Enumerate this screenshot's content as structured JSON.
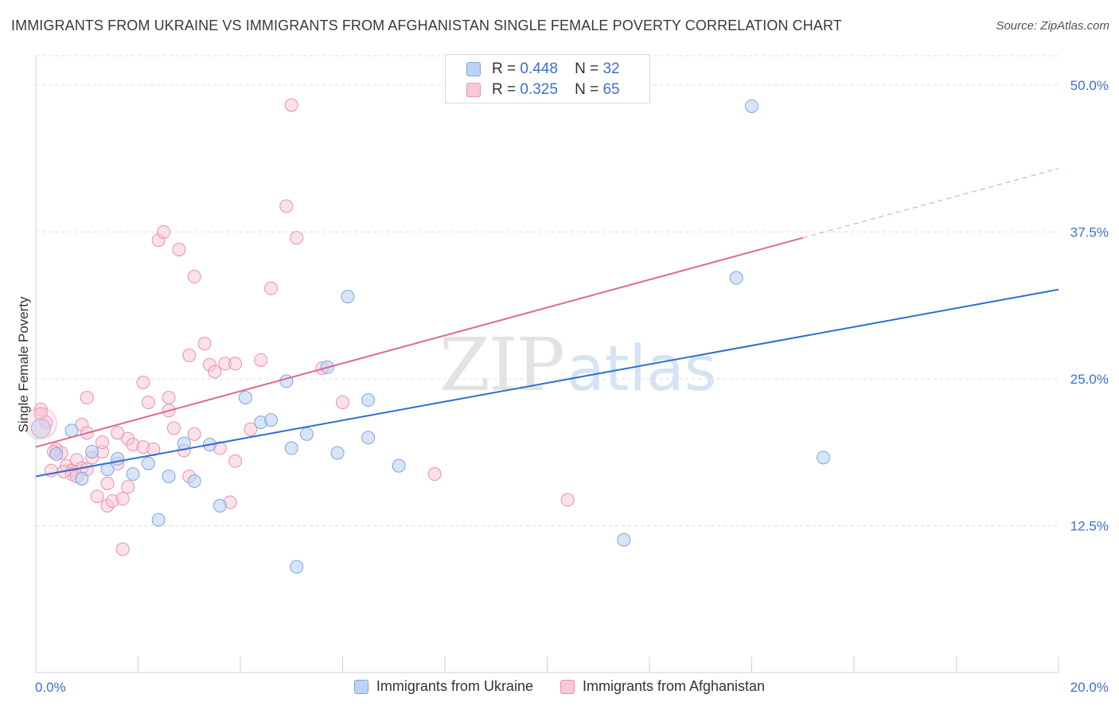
{
  "title": "IMMIGRANTS FROM UKRAINE VS IMMIGRANTS FROM AFGHANISTAN SINGLE FEMALE POVERTY CORRELATION CHART",
  "source": "Source: ZipAtlas.com",
  "watermark": {
    "zip": "ZIP",
    "atlas": "atlas"
  },
  "legend_top": {
    "r_label": "R =",
    "n_label": "N =",
    "rows": [
      {
        "r": "0.448",
        "n": "32"
      },
      {
        "r": "0.325",
        "n": "65"
      }
    ]
  },
  "colors": {
    "ukraine_fill": "#bcd3f5",
    "ukraine_stroke": "#7ea6e0",
    "ukraine_line": "#2f6fd0",
    "afghanistan_fill": "#f8c8d6",
    "afghanistan_stroke": "#e891ad",
    "afghanistan_line": "#e06a92",
    "tick_label": "#3b6fd1"
  },
  "chart_data": {
    "type": "scatter",
    "title": "IMMIGRANTS FROM UKRAINE VS IMMIGRANTS FROM AFGHANISTAN SINGLE FEMALE POVERTY CORRELATION CHART",
    "xlabel": "",
    "ylabel": "Single Female Poverty",
    "xlim": [
      0,
      20
    ],
    "ylim": [
      0,
      52.5
    ],
    "x_tick_labels": [
      "0.0%",
      "20.0%"
    ],
    "y_ticks": [
      12.5,
      25.0,
      37.5,
      50.0
    ],
    "y_tick_labels": [
      "12.5%",
      "25.0%",
      "37.5%",
      "50.0%"
    ],
    "grid": true,
    "legend_position": "top-center",
    "series": [
      {
        "name": "Immigrants from Ukraine",
        "color": "#7ea6e0",
        "trend": {
          "x0": 0.0,
          "y0": 16.7,
          "x1": 20.0,
          "y1": 32.6
        },
        "points": [
          [
            0.1,
            20.8
          ],
          [
            0.4,
            18.6
          ],
          [
            0.7,
            20.6
          ],
          [
            0.9,
            16.5
          ],
          [
            1.1,
            18.8
          ],
          [
            1.4,
            17.3
          ],
          [
            1.6,
            18.2
          ],
          [
            1.9,
            16.9
          ],
          [
            2.2,
            17.8
          ],
          [
            2.4,
            13.0
          ],
          [
            2.6,
            16.7
          ],
          [
            2.9,
            19.5
          ],
          [
            3.1,
            16.3
          ],
          [
            3.4,
            19.4
          ],
          [
            3.6,
            14.2
          ],
          [
            4.1,
            23.4
          ],
          [
            4.4,
            21.3
          ],
          [
            4.6,
            21.5
          ],
          [
            4.9,
            24.8
          ],
          [
            5.1,
            9.0
          ],
          [
            5.0,
            19.1
          ],
          [
            5.3,
            20.3
          ],
          [
            5.7,
            26.0
          ],
          [
            5.9,
            18.7
          ],
          [
            6.1,
            32.0
          ],
          [
            6.5,
            20.0
          ],
          [
            6.5,
            23.2
          ],
          [
            7.1,
            17.6
          ],
          [
            11.5,
            11.3
          ],
          [
            13.7,
            33.6
          ],
          [
            14.0,
            48.2
          ],
          [
            15.4,
            18.3
          ]
        ]
      },
      {
        "name": "Immigrants from Afghanistan",
        "color": "#e891ad",
        "trend": {
          "x0": 0.0,
          "y0": 19.2,
          "x1": 15.0,
          "y1": 37.0,
          "dash_x1": 20.0,
          "dash_y1": 42.9
        },
        "points": [
          [
            0.1,
            22.4
          ],
          [
            0.1,
            22.0
          ],
          [
            0.2,
            21.3
          ],
          [
            0.3,
            17.2
          ],
          [
            0.4,
            19.0
          ],
          [
            0.5,
            18.7
          ],
          [
            0.6,
            17.6
          ],
          [
            0.7,
            17.2
          ],
          [
            0.7,
            16.9
          ],
          [
            0.8,
            18.1
          ],
          [
            0.9,
            17.4
          ],
          [
            0.9,
            21.1
          ],
          [
            1.0,
            20.4
          ],
          [
            1.0,
            17.3
          ],
          [
            1.0,
            23.4
          ],
          [
            1.1,
            18.3
          ],
          [
            1.2,
            15.0
          ],
          [
            1.3,
            18.8
          ],
          [
            1.3,
            19.6
          ],
          [
            1.4,
            16.1
          ],
          [
            1.4,
            14.2
          ],
          [
            1.5,
            14.6
          ],
          [
            1.6,
            17.8
          ],
          [
            1.6,
            20.4
          ],
          [
            1.7,
            14.8
          ],
          [
            1.7,
            10.5
          ],
          [
            1.8,
            19.9
          ],
          [
            1.8,
            15.8
          ],
          [
            1.9,
            19.4
          ],
          [
            2.1,
            19.2
          ],
          [
            2.1,
            24.7
          ],
          [
            2.2,
            23.0
          ],
          [
            2.3,
            19.0
          ],
          [
            2.4,
            36.8
          ],
          [
            2.5,
            37.5
          ],
          [
            2.6,
            22.3
          ],
          [
            2.6,
            23.4
          ],
          [
            2.8,
            36.0
          ],
          [
            2.9,
            18.9
          ],
          [
            3.0,
            16.7
          ],
          [
            3.0,
            27.0
          ],
          [
            3.1,
            20.3
          ],
          [
            3.1,
            33.7
          ],
          [
            3.3,
            28.0
          ],
          [
            3.4,
            26.2
          ],
          [
            3.5,
            25.6
          ],
          [
            3.6,
            19.1
          ],
          [
            3.7,
            26.3
          ],
          [
            3.8,
            14.5
          ],
          [
            3.9,
            26.3
          ],
          [
            3.9,
            18.0
          ],
          [
            4.2,
            20.7
          ],
          [
            4.4,
            26.6
          ],
          [
            4.6,
            32.7
          ],
          [
            4.9,
            39.7
          ],
          [
            5.0,
            48.3
          ],
          [
            5.1,
            37.0
          ],
          [
            5.6,
            25.9
          ],
          [
            6.0,
            23.0
          ],
          [
            7.8,
            16.9
          ],
          [
            10.4,
            14.7
          ],
          [
            0.35,
            18.8
          ],
          [
            0.55,
            17.1
          ],
          [
            0.8,
            16.7
          ],
          [
            2.7,
            20.8
          ]
        ]
      }
    ]
  },
  "legend_bottom": [
    "Immigrants from Ukraine",
    "Immigrants from Afghanistan"
  ]
}
